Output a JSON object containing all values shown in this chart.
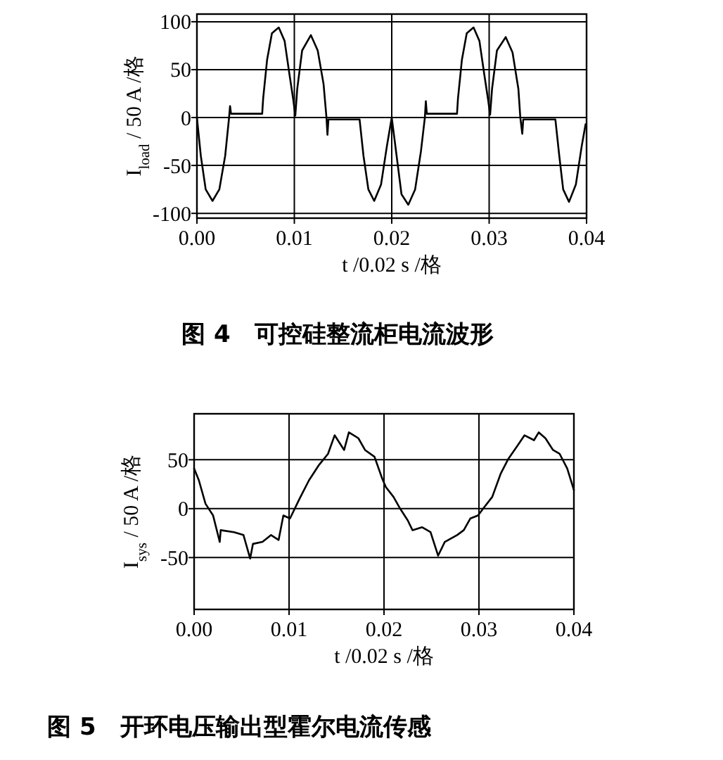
{
  "chart_data": [
    {
      "type": "line",
      "xlabel": "t /0.02 s /格",
      "ylabel": "I$_{load}$ / 50 A /格",
      "annotations": [
        "图 4　可控硅整流柜电流波形"
      ],
      "grid": true,
      "xlim": [
        0,
        0.04
      ],
      "ylim": [
        -105,
        108
      ],
      "xticks": [
        {
          "value": 0,
          "label": "0.00"
        },
        {
          "value": 0.01,
          "label": "0.01"
        },
        {
          "value": 0.02,
          "label": "0.02"
        },
        {
          "value": 0.03,
          "label": "0.03"
        },
        {
          "value": 0.04,
          "label": "0.04"
        }
      ],
      "yticks": [
        -100,
        -50,
        0,
        50,
        100
      ],
      "series": [
        {
          "color": "#000000",
          "x": [
            0,
            0.0004,
            0.0009,
            0.0016,
            0.0023,
            0.0029,
            0.0033,
            0.0034,
            0.0035,
            0.0067,
            0.0068,
            0.0072,
            0.0077,
            0.0084,
            0.009,
            0.0095,
            0.0099,
            0.0101,
            0.0103,
            0.0108,
            0.0117,
            0.0124,
            0.013,
            0.0133,
            0.0134,
            0.0135,
            0.0167,
            0.0171,
            0.0176,
            0.0182,
            0.0189,
            0.0195,
            0.02,
            0.0205,
            0.021,
            0.0217,
            0.0224,
            0.023,
            0.0234,
            0.0235,
            0.0236,
            0.0267,
            0.0268,
            0.0272,
            0.0277,
            0.0284,
            0.029,
            0.0295,
            0.0299,
            0.0301,
            0.0303,
            0.0308,
            0.0317,
            0.0324,
            0.033,
            0.0332,
            0.0334,
            0.0335,
            0.0368,
            0.0372,
            0.0376,
            0.0382,
            0.0389,
            0.0395,
            0.0399
          ],
          "values": [
            0,
            -40,
            -75,
            -87,
            -75,
            -40,
            0,
            12,
            4,
            4,
            20,
            60,
            88,
            94,
            80,
            45,
            18,
            2,
            30,
            70,
            86,
            70,
            35,
            0,
            -18,
            -2,
            -2,
            -40,
            -75,
            -87,
            -70,
            -30,
            0,
            -40,
            -80,
            -91,
            -75,
            -35,
            0,
            17,
            4,
            4,
            20,
            60,
            88,
            94,
            80,
            45,
            18,
            3,
            30,
            70,
            84,
            68,
            30,
            0,
            -17,
            -2,
            -2,
            -40,
            -75,
            -88,
            -70,
            -30,
            -7
          ]
        }
      ]
    },
    {
      "type": "line",
      "xlabel": "t /0.02 s /格",
      "ylabel": "I$_{sys}$ / 50 A /格",
      "annotations": [
        "图 5　开环电压输出型霍尔电流传感"
      ],
      "grid": true,
      "xlim": [
        0,
        0.04
      ],
      "ylim": [
        -103,
        97
      ],
      "xticks": [
        {
          "value": 0,
          "label": "0.00"
        },
        {
          "value": 0.01,
          "label": "0.01"
        },
        {
          "value": 0.02,
          "label": "0.02"
        },
        {
          "value": 0.03,
          "label": "0.03"
        },
        {
          "value": 0.04,
          "label": "0.04"
        }
      ],
      "yticks": [
        -50,
        0,
        50
      ],
      "series": [
        {
          "color": "#000000",
          "x": [
            0,
            0.0005,
            0.0012,
            0.002,
            0.0027,
            0.0028,
            0.0042,
            0.0052,
            0.0059,
            0.0062,
            0.0072,
            0.0081,
            0.0089,
            0.0094,
            0.0101,
            0.0111,
            0.0121,
            0.0131,
            0.0141,
            0.0148,
            0.0158,
            0.0163,
            0.0173,
            0.018,
            0.019,
            0.0198,
            0.0202,
            0.021,
            0.0217,
            0.0225,
            0.023,
            0.024,
            0.0249,
            0.0257,
            0.0264,
            0.0277,
            0.0284,
            0.0291,
            0.0299,
            0.0306,
            0.0314,
            0.0323,
            0.0331,
            0.0341,
            0.0348,
            0.0358,
            0.0363,
            0.037,
            0.0378,
            0.0385,
            0.0393,
            0.04
          ],
          "values": [
            41,
            29,
            5,
            -7,
            -34,
            -22,
            -24,
            -27,
            -51,
            -36,
            -34,
            -27,
            -32,
            -7,
            -10,
            10,
            29,
            44,
            56,
            75,
            60,
            78,
            72,
            60,
            53,
            31,
            22,
            12,
            0,
            -12,
            -22,
            -19,
            -24,
            -48,
            -34,
            -27,
            -22,
            -10,
            -7,
            2,
            12,
            36,
            51,
            65,
            75,
            70,
            78,
            72,
            60,
            56,
            41,
            19
          ]
        }
      ]
    }
  ]
}
